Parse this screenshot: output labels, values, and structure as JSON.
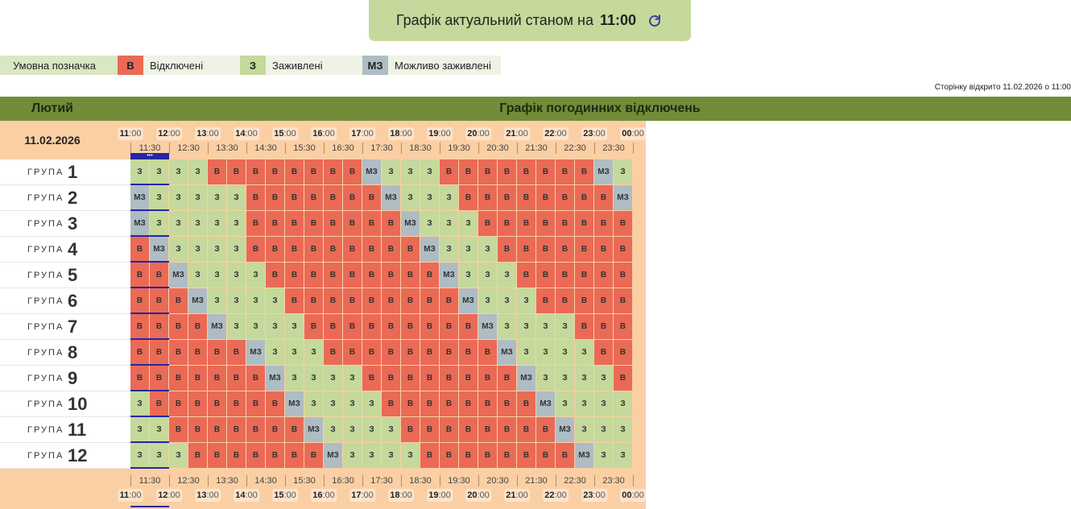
{
  "banner": {
    "text": "Графік актуальний станом на",
    "time": "11:00",
    "icon": "refresh-icon"
  },
  "legend": {
    "label": "Умовна позначка",
    "items": [
      {
        "code": "В",
        "label": "Відключені",
        "color": "#ea6a56"
      },
      {
        "code": "З",
        "label": "Заживлені",
        "color": "#c4d99b"
      },
      {
        "code": "МЗ",
        "label": "Можливо заживлені",
        "color": "#aebcc3"
      }
    ]
  },
  "page_opened": "Сторінку відкрито 11.02.2026 о 11:00",
  "header": {
    "month": "Лютий",
    "title": "Графік погодинних відключень"
  },
  "schedule": {
    "date": "11.02.2026",
    "group_word": "ГРУПА",
    "hours": [
      "11",
      "12",
      "13",
      "14",
      "15",
      "16",
      "17",
      "18",
      "19",
      "20",
      "21",
      "22",
      "23",
      "00"
    ],
    "minutes": ":00",
    "half_hours": [
      "11:30",
      "12:30",
      "13:30",
      "14:30",
      "15:30",
      "16:30",
      "17:30",
      "18:30",
      "19:30",
      "20:30",
      "21:30",
      "22:30",
      "23:30"
    ],
    "current_marker": "•••",
    "codes": {
      "v": "В",
      "z": "З",
      "mz": "МЗ"
    },
    "groups": [
      {
        "number": "1",
        "slots": [
          "z",
          "z",
          "z",
          "z",
          "v",
          "v",
          "v",
          "v",
          "v",
          "v",
          "v",
          "v",
          "mz",
          "z",
          "z",
          "z",
          "v",
          "v",
          "v",
          "v",
          "v",
          "v",
          "v",
          "v",
          "mz",
          "z"
        ]
      },
      {
        "number": "2",
        "slots": [
          "mz",
          "z",
          "z",
          "z",
          "z",
          "z",
          "v",
          "v",
          "v",
          "v",
          "v",
          "v",
          "v",
          "mz",
          "z",
          "z",
          "z",
          "v",
          "v",
          "v",
          "v",
          "v",
          "v",
          "v",
          "v",
          "mz"
        ]
      },
      {
        "number": "3",
        "slots": [
          "mz",
          "z",
          "z",
          "z",
          "z",
          "z",
          "v",
          "v",
          "v",
          "v",
          "v",
          "v",
          "v",
          "v",
          "mz",
          "z",
          "z",
          "z",
          "v",
          "v",
          "v",
          "v",
          "v",
          "v",
          "v",
          "v"
        ]
      },
      {
        "number": "4",
        "slots": [
          "v",
          "mz",
          "z",
          "z",
          "z",
          "z",
          "v",
          "v",
          "v",
          "v",
          "v",
          "v",
          "v",
          "v",
          "v",
          "mz",
          "z",
          "z",
          "z",
          "v",
          "v",
          "v",
          "v",
          "v",
          "v",
          "v"
        ]
      },
      {
        "number": "5",
        "slots": [
          "v",
          "v",
          "mz",
          "z",
          "z",
          "z",
          "z",
          "v",
          "v",
          "v",
          "v",
          "v",
          "v",
          "v",
          "v",
          "v",
          "mz",
          "z",
          "z",
          "z",
          "v",
          "v",
          "v",
          "v",
          "v",
          "v"
        ]
      },
      {
        "number": "6",
        "slots": [
          "v",
          "v",
          "v",
          "mz",
          "z",
          "z",
          "z",
          "z",
          "v",
          "v",
          "v",
          "v",
          "v",
          "v",
          "v",
          "v",
          "v",
          "mz",
          "z",
          "z",
          "z",
          "v",
          "v",
          "v",
          "v",
          "v"
        ]
      },
      {
        "number": "7",
        "slots": [
          "v",
          "v",
          "v",
          "v",
          "mz",
          "z",
          "z",
          "z",
          "z",
          "v",
          "v",
          "v",
          "v",
          "v",
          "v",
          "v",
          "v",
          "v",
          "mz",
          "z",
          "z",
          "z",
          "z",
          "v",
          "v",
          "v"
        ]
      },
      {
        "number": "8",
        "slots": [
          "v",
          "v",
          "v",
          "v",
          "v",
          "v",
          "mz",
          "z",
          "z",
          "z",
          "v",
          "v",
          "v",
          "v",
          "v",
          "v",
          "v",
          "v",
          "v",
          "mz",
          "z",
          "z",
          "z",
          "z",
          "v",
          "v"
        ]
      },
      {
        "number": "9",
        "slots": [
          "v",
          "v",
          "v",
          "v",
          "v",
          "v",
          "v",
          "mz",
          "z",
          "z",
          "z",
          "z",
          "v",
          "v",
          "v",
          "v",
          "v",
          "v",
          "v",
          "v",
          "mz",
          "z",
          "z",
          "z",
          "z",
          "v"
        ]
      },
      {
        "number": "10",
        "slots": [
          "z",
          "v",
          "v",
          "v",
          "v",
          "v",
          "v",
          "v",
          "mz",
          "z",
          "z",
          "z",
          "z",
          "v",
          "v",
          "v",
          "v",
          "v",
          "v",
          "v",
          "v",
          "mz",
          "z",
          "z",
          "z",
          "z"
        ]
      },
      {
        "number": "11",
        "slots": [
          "z",
          "z",
          "v",
          "v",
          "v",
          "v",
          "v",
          "v",
          "v",
          "mz",
          "z",
          "z",
          "z",
          "z",
          "v",
          "v",
          "v",
          "v",
          "v",
          "v",
          "v",
          "v",
          "mz",
          "z",
          "z",
          "z"
        ]
      },
      {
        "number": "12",
        "slots": [
          "z",
          "z",
          "z",
          "v",
          "v",
          "v",
          "v",
          "v",
          "v",
          "v",
          "mz",
          "z",
          "z",
          "z",
          "z",
          "v",
          "v",
          "v",
          "v",
          "v",
          "v",
          "v",
          "v",
          "mz",
          "z",
          "z"
        ]
      }
    ]
  }
}
